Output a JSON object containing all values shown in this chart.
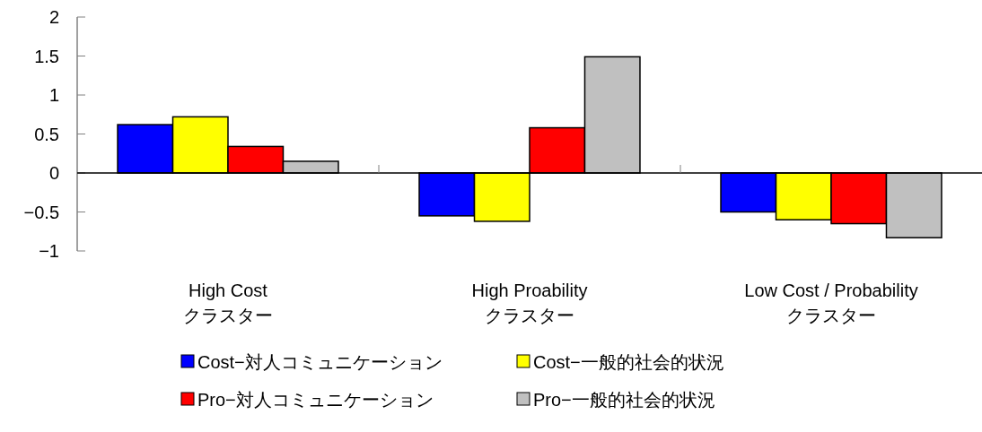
{
  "chart_data": {
    "type": "bar",
    "categories": [
      "High Cost\nクラスター",
      "High Proability\nクラスター",
      "Low Cost / Probability\nクラスター"
    ],
    "series": [
      {
        "name": "Cost−対人コミュニケーション",
        "color": "#0000ff",
        "values": [
          0.62,
          -0.55,
          -0.5
        ]
      },
      {
        "name": "Cost−一般的社会的状況",
        "color": "#ffff00",
        "values": [
          0.72,
          -0.62,
          -0.6
        ]
      },
      {
        "name": "Pro−対人コミュニケーション",
        "color": "#ff0000",
        "values": [
          0.34,
          0.58,
          -0.65
        ]
      },
      {
        "name": "Pro−一般的社会的状況",
        "color": "#c0c0c0",
        "values": [
          0.15,
          1.49,
          -0.83
        ]
      }
    ],
    "ylim": [
      -1,
      2
    ],
    "yticks": [
      {
        "value": -1,
        "label": "−1"
      },
      {
        "value": -0.5,
        "label": "−0.5"
      },
      0,
      0.5,
      1,
      1.5,
      2
    ],
    "legend": "bottom"
  }
}
